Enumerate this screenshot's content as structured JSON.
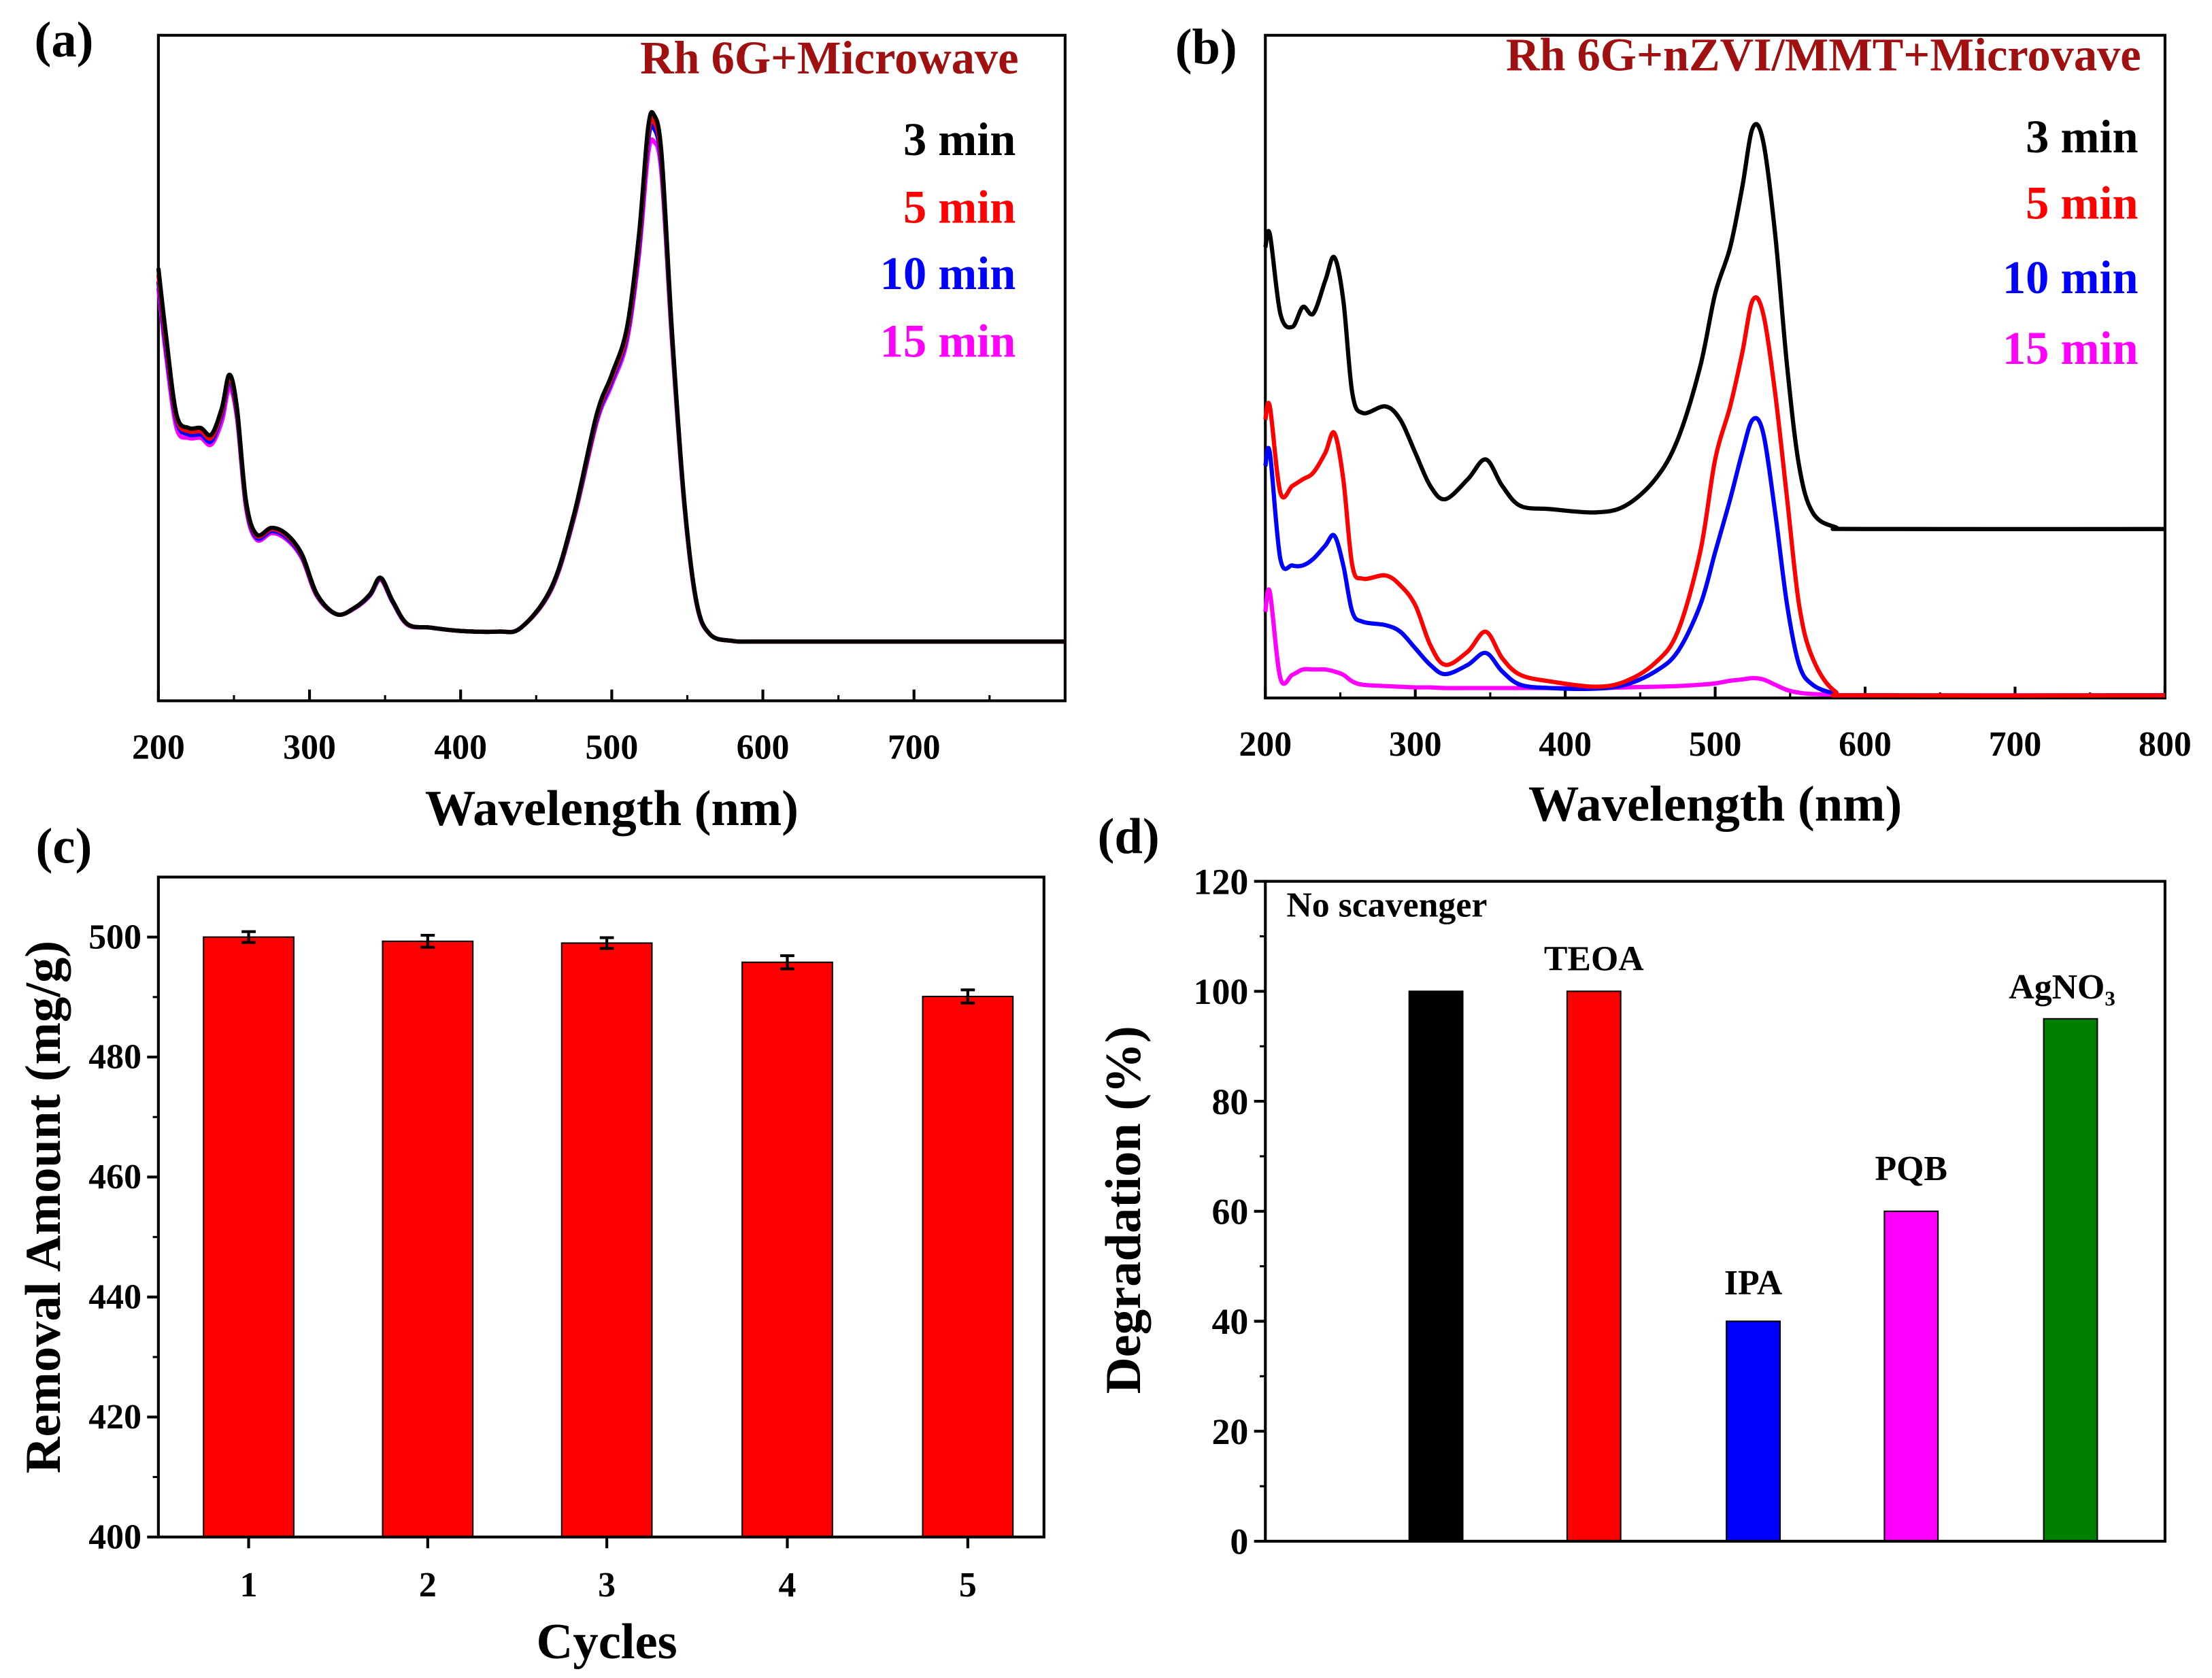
{
  "chart_data": [
    {
      "panel": "(a)",
      "type": "line",
      "title": "Rh 6G+Microwave",
      "title_color": "#a01010",
      "xlabel": "Wavelength (nm)",
      "ylabel": "",
      "xlim": [
        200,
        800
      ],
      "ylim": [
        0,
        1
      ],
      "xticks": [
        200,
        300,
        400,
        500,
        600,
        700
      ],
      "x": [
        200,
        205,
        212,
        220,
        228,
        235,
        242,
        247,
        252,
        258,
        265,
        275,
        285,
        295,
        305,
        318,
        330,
        340,
        347,
        355,
        365,
        380,
        400,
        425,
        440,
        460,
        475,
        490,
        500,
        510,
        518,
        524,
        528,
        533,
        540,
        548,
        556,
        565,
        580,
        600,
        700,
        800
      ],
      "series": [
        {
          "name": "3 min",
          "color": "#000000",
          "values": [
            0.65,
            0.55,
            0.43,
            0.41,
            0.41,
            0.4,
            0.44,
            0.49,
            0.44,
            0.3,
            0.25,
            0.26,
            0.25,
            0.22,
            0.16,
            0.13,
            0.14,
            0.16,
            0.185,
            0.15,
            0.115,
            0.11,
            0.105,
            0.104,
            0.11,
            0.17,
            0.28,
            0.43,
            0.49,
            0.56,
            0.7,
            0.86,
            0.88,
            0.82,
            0.55,
            0.3,
            0.15,
            0.1,
            0.09,
            0.089,
            0.089,
            0.089
          ]
        },
        {
          "name": "5 min",
          "color": "#ff0000",
          "values": [
            0.64,
            0.54,
            0.425,
            0.405,
            0.405,
            0.395,
            0.435,
            0.485,
            0.435,
            0.297,
            0.248,
            0.258,
            0.248,
            0.218,
            0.159,
            0.13,
            0.14,
            0.16,
            0.184,
            0.15,
            0.115,
            0.11,
            0.105,
            0.104,
            0.11,
            0.169,
            0.278,
            0.426,
            0.485,
            0.553,
            0.69,
            0.85,
            0.87,
            0.81,
            0.545,
            0.298,
            0.149,
            0.1,
            0.09,
            0.089,
            0.089,
            0.089
          ]
        },
        {
          "name": "10 min",
          "color": "#0000ff",
          "values": [
            0.63,
            0.53,
            0.42,
            0.4,
            0.4,
            0.39,
            0.43,
            0.48,
            0.43,
            0.294,
            0.245,
            0.255,
            0.245,
            0.216,
            0.158,
            0.13,
            0.14,
            0.159,
            0.183,
            0.149,
            0.115,
            0.11,
            0.105,
            0.104,
            0.11,
            0.168,
            0.276,
            0.422,
            0.48,
            0.547,
            0.68,
            0.84,
            0.86,
            0.8,
            0.54,
            0.296,
            0.148,
            0.1,
            0.09,
            0.089,
            0.089,
            0.089
          ]
        },
        {
          "name": "15 min",
          "color": "#ff00ff",
          "values": [
            0.62,
            0.52,
            0.41,
            0.395,
            0.395,
            0.385,
            0.42,
            0.47,
            0.425,
            0.29,
            0.242,
            0.252,
            0.242,
            0.214,
            0.157,
            0.13,
            0.139,
            0.158,
            0.182,
            0.148,
            0.114,
            0.11,
            0.105,
            0.104,
            0.11,
            0.167,
            0.274,
            0.418,
            0.475,
            0.54,
            0.67,
            0.82,
            0.84,
            0.79,
            0.535,
            0.294,
            0.147,
            0.1,
            0.09,
            0.089,
            0.089,
            0.089
          ]
        }
      ],
      "legend_position": "top-right"
    },
    {
      "panel": "(b)",
      "type": "line",
      "title": "Rh 6G+nZVI/MMT+Microvave",
      "title_color": "#a01010",
      "xlabel": "Wavelength (nm)",
      "ylabel": "",
      "xlim": [
        200,
        800
      ],
      "ylim": [
        0,
        1
      ],
      "xticks": [
        200,
        300,
        400,
        500,
        600,
        700,
        800
      ],
      "x": [
        200,
        203,
        210,
        218,
        225,
        232,
        240,
        246,
        252,
        258,
        265,
        280,
        290,
        300,
        310,
        320,
        335,
        347,
        358,
        370,
        390,
        420,
        440,
        460,
        475,
        490,
        500,
        510,
        518,
        525,
        532,
        540,
        548,
        556,
        565,
        580,
        600,
        800
      ],
      "series": [
        {
          "name": "3 min",
          "color": "#000000",
          "values": [
            0.68,
            0.7,
            0.58,
            0.56,
            0.59,
            0.58,
            0.63,
            0.665,
            0.6,
            0.46,
            0.43,
            0.44,
            0.42,
            0.37,
            0.32,
            0.3,
            0.33,
            0.36,
            0.32,
            0.29,
            0.285,
            0.28,
            0.29,
            0.33,
            0.39,
            0.5,
            0.61,
            0.68,
            0.77,
            0.86,
            0.84,
            0.7,
            0.5,
            0.35,
            0.28,
            0.258,
            0.255,
            0.255
          ]
        },
        {
          "name": "5 min",
          "color": "#ff0000",
          "values": [
            0.42,
            0.44,
            0.31,
            0.32,
            0.33,
            0.34,
            0.37,
            0.4,
            0.33,
            0.2,
            0.18,
            0.185,
            0.17,
            0.14,
            0.08,
            0.05,
            0.07,
            0.1,
            0.06,
            0.035,
            0.025,
            0.017,
            0.025,
            0.053,
            0.1,
            0.22,
            0.36,
            0.44,
            0.52,
            0.6,
            0.58,
            0.46,
            0.3,
            0.14,
            0.06,
            0.01,
            0.004,
            0.004
          ]
        },
        {
          "name": "10 min",
          "color": "#0000ff",
          "values": [
            0.35,
            0.37,
            0.21,
            0.2,
            0.2,
            0.21,
            0.23,
            0.245,
            0.2,
            0.13,
            0.115,
            0.11,
            0.1,
            0.075,
            0.05,
            0.036,
            0.05,
            0.068,
            0.04,
            0.02,
            0.015,
            0.014,
            0.02,
            0.04,
            0.07,
            0.14,
            0.22,
            0.3,
            0.37,
            0.42,
            0.4,
            0.28,
            0.14,
            0.05,
            0.02,
            0.007,
            0.004,
            0.004
          ]
        },
        {
          "name": "15 min",
          "color": "#ff00ff",
          "values": [
            0.13,
            0.16,
            0.03,
            0.035,
            0.043,
            0.043,
            0.043,
            0.04,
            0.035,
            0.025,
            0.02,
            0.018,
            0.017,
            0.016,
            0.016,
            0.015,
            0.015,
            0.015,
            0.015,
            0.015,
            0.015,
            0.015,
            0.016,
            0.017,
            0.018,
            0.02,
            0.022,
            0.026,
            0.028,
            0.03,
            0.028,
            0.02,
            0.012,
            0.008,
            0.006,
            0.005,
            0.004,
            0.004
          ]
        }
      ],
      "legend_position": "top-right"
    },
    {
      "panel": "(c)",
      "type": "bar",
      "xlabel": "Cycles",
      "ylabel": "Removal Amount (mg/g)",
      "categories": [
        "1",
        "2",
        "3",
        "4",
        "5"
      ],
      "values": [
        500,
        499.3,
        499,
        495.8,
        490.1
      ],
      "errors": [
        0.9,
        1.0,
        0.9,
        1.1,
        1.1
      ],
      "bar_color": "#ff0000",
      "ylim": [
        400,
        510
      ],
      "yticks": [
        400,
        420,
        440,
        460,
        480,
        500
      ]
    },
    {
      "panel": "(d)",
      "type": "bar",
      "xlabel": "",
      "ylabel": "Degradation (%)",
      "categories": [
        "No scavenger",
        "TEOA",
        "IPA",
        "PQB",
        "AgNO₃"
      ],
      "values": [
        100,
        100,
        40,
        60,
        95
      ],
      "colors": [
        "#000000",
        "#ff0000",
        "#0000ff",
        "#ff00ff",
        "#008000"
      ],
      "ylim": [
        0,
        120
      ],
      "yticks": [
        0,
        20,
        40,
        60,
        80,
        100,
        120
      ]
    }
  ]
}
